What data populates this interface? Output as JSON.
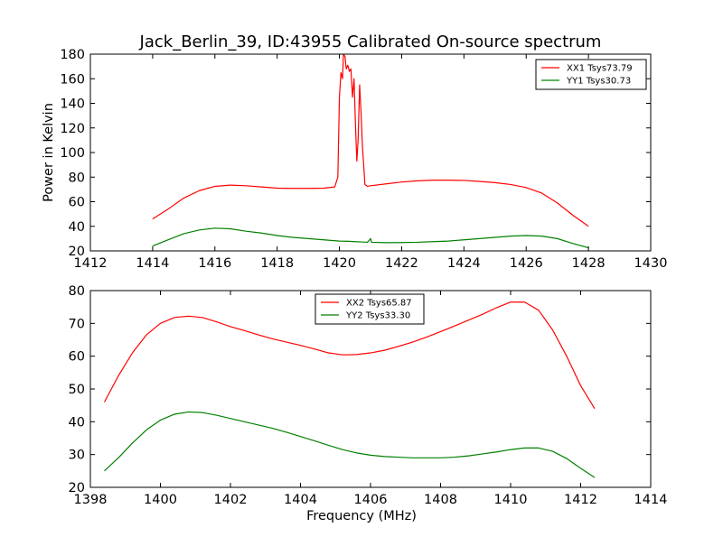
{
  "figure": {
    "title": "Jack_Berlin_39, ID:43955 Calibrated On-source spectrum",
    "colors": {
      "series1": "#ff0000",
      "series2": "#008000",
      "axes": "#000000",
      "background": "#ffffff"
    }
  },
  "chart_data": [
    {
      "type": "line",
      "title": "Jack_Berlin_39, ID:43955 Calibrated On-source spectrum",
      "xlabel": "",
      "ylabel": "Power in Kelvin",
      "xlim": [
        1412,
        1430
      ],
      "ylim": [
        20,
        180
      ],
      "xticks": [
        "1412",
        "1414",
        "1416",
        "1418",
        "1420",
        "1422",
        "1424",
        "1426",
        "1428",
        "1430"
      ],
      "yticks": [
        "20",
        "40",
        "60",
        "80",
        "100",
        "120",
        "140",
        "160",
        "180"
      ],
      "grid": false,
      "legend_position": "top-right",
      "series": [
        {
          "name": "XX1 Tsys73.79",
          "color": "#ff0000",
          "points": [
            [
              1414.0,
              46
            ],
            [
              1414.5,
              54
            ],
            [
              1415.0,
              63
            ],
            [
              1415.5,
              69
            ],
            [
              1416.0,
              72.5
            ],
            [
              1416.5,
              73.5
            ],
            [
              1417.0,
              73
            ],
            [
              1417.5,
              72
            ],
            [
              1418.0,
              71
            ],
            [
              1418.5,
              70.8
            ],
            [
              1419.0,
              70.8
            ],
            [
              1419.5,
              71
            ],
            [
              1419.85,
              72
            ],
            [
              1419.95,
              80
            ],
            [
              1420.0,
              145
            ],
            [
              1420.05,
              165
            ],
            [
              1420.1,
              160
            ],
            [
              1420.13,
              180
            ],
            [
              1420.18,
              178
            ],
            [
              1420.22,
              168
            ],
            [
              1420.27,
              171
            ],
            [
              1420.32,
              166
            ],
            [
              1420.37,
              168
            ],
            [
              1420.42,
              145
            ],
            [
              1420.47,
              160
            ],
            [
              1420.52,
              120
            ],
            [
              1420.56,
              93
            ],
            [
              1420.6,
              110
            ],
            [
              1420.65,
              155
            ],
            [
              1420.7,
              130
            ],
            [
              1420.74,
              105
            ],
            [
              1420.78,
              90
            ],
            [
              1420.82,
              74
            ],
            [
              1420.9,
              72.5
            ],
            [
              1421.0,
              73
            ],
            [
              1421.5,
              74.5
            ],
            [
              1422.0,
              76
            ],
            [
              1422.5,
              77
            ],
            [
              1423.0,
              77.5
            ],
            [
              1423.5,
              77.5
            ],
            [
              1424.0,
              77.3
            ],
            [
              1424.5,
              76.5
            ],
            [
              1425.0,
              75.5
            ],
            [
              1425.5,
              74
            ],
            [
              1426.0,
              71.5
            ],
            [
              1426.5,
              67
            ],
            [
              1427.0,
              59
            ],
            [
              1427.5,
              49
            ],
            [
              1428.0,
              40
            ]
          ]
        },
        {
          "name": "YY1 Tsys30.73",
          "color": "#008000",
          "points": [
            [
              1414.0,
              24
            ],
            [
              1414.5,
              29
            ],
            [
              1415.0,
              34
            ],
            [
              1415.5,
              37
            ],
            [
              1416.0,
              38.5
            ],
            [
              1416.5,
              38
            ],
            [
              1417.0,
              36
            ],
            [
              1417.5,
              34.5
            ],
            [
              1418.0,
              32.5
            ],
            [
              1418.5,
              31
            ],
            [
              1419.0,
              30
            ],
            [
              1419.5,
              29
            ],
            [
              1420.0,
              28
            ],
            [
              1420.3,
              27.8
            ],
            [
              1420.5,
              27.5
            ],
            [
              1420.7,
              27.3
            ],
            [
              1420.9,
              27
            ],
            [
              1420.97,
              29
            ],
            [
              1421.0,
              30
            ],
            [
              1421.03,
              27
            ],
            [
              1421.5,
              26.7
            ],
            [
              1422.0,
              26.8
            ],
            [
              1422.5,
              27
            ],
            [
              1423.0,
              27.5
            ],
            [
              1423.5,
              28
            ],
            [
              1424.0,
              29
            ],
            [
              1424.5,
              30
            ],
            [
              1425.0,
              31
            ],
            [
              1425.5,
              32
            ],
            [
              1426.0,
              32.5
            ],
            [
              1426.5,
              32
            ],
            [
              1427.0,
              30
            ],
            [
              1427.5,
              26
            ],
            [
              1428.0,
              22.5
            ]
          ]
        }
      ]
    },
    {
      "type": "line",
      "title": "",
      "xlabel": "Frequency (MHz)",
      "ylabel": "",
      "xlim": [
        1398,
        1414
      ],
      "ylim": [
        20,
        80
      ],
      "xticks": [
        "1398",
        "1400",
        "1402",
        "1404",
        "1406",
        "1408",
        "1410",
        "1412",
        "1414"
      ],
      "yticks": [
        "20",
        "30",
        "40",
        "50",
        "60",
        "70",
        "80"
      ],
      "grid": false,
      "legend_position": "top-center",
      "series": [
        {
          "name": "XX2 Tsys65.87",
          "color": "#ff0000",
          "points": [
            [
              1398.4,
              46
            ],
            [
              1398.8,
              54
            ],
            [
              1399.2,
              61
            ],
            [
              1399.6,
              66.5
            ],
            [
              1400.0,
              70
            ],
            [
              1400.4,
              71.8
            ],
            [
              1400.8,
              72.2
            ],
            [
              1401.2,
              71.8
            ],
            [
              1401.6,
              70.5
            ],
            [
              1402.0,
              69
            ],
            [
              1402.4,
              67.8
            ],
            [
              1402.8,
              66.5
            ],
            [
              1403.2,
              65.3
            ],
            [
              1403.6,
              64.3
            ],
            [
              1404.0,
              63.3
            ],
            [
              1404.4,
              62.2
            ],
            [
              1404.8,
              61
            ],
            [
              1405.2,
              60.4
            ],
            [
              1405.6,
              60.5
            ],
            [
              1406.0,
              61
            ],
            [
              1406.4,
              61.8
            ],
            [
              1406.8,
              63
            ],
            [
              1407.2,
              64.3
            ],
            [
              1407.6,
              65.8
            ],
            [
              1408.0,
              67.5
            ],
            [
              1408.4,
              69.2
            ],
            [
              1408.8,
              71
            ],
            [
              1409.2,
              72.8
            ],
            [
              1409.6,
              74.8
            ],
            [
              1410.0,
              76.5
            ],
            [
              1410.4,
              76.5
            ],
            [
              1410.8,
              74
            ],
            [
              1411.2,
              68
            ],
            [
              1411.6,
              60
            ],
            [
              1412.0,
              51
            ],
            [
              1412.4,
              44
            ]
          ]
        },
        {
          "name": "YY2 Tsys33.30",
          "color": "#008000",
          "points": [
            [
              1398.4,
              25
            ],
            [
              1398.8,
              29
            ],
            [
              1399.2,
              33.5
            ],
            [
              1399.6,
              37.5
            ],
            [
              1400.0,
              40.5
            ],
            [
              1400.4,
              42.3
            ],
            [
              1400.8,
              43
            ],
            [
              1401.2,
              42.8
            ],
            [
              1401.6,
              42
            ],
            [
              1402.0,
              41
            ],
            [
              1402.4,
              40
            ],
            [
              1402.8,
              39
            ],
            [
              1403.2,
              38
            ],
            [
              1403.6,
              36.8
            ],
            [
              1404.0,
              35.5
            ],
            [
              1404.4,
              34.2
            ],
            [
              1404.8,
              32.8
            ],
            [
              1405.2,
              31.5
            ],
            [
              1405.6,
              30.5
            ],
            [
              1406.0,
              29.8
            ],
            [
              1406.4,
              29.4
            ],
            [
              1406.8,
              29.2
            ],
            [
              1407.2,
              29
            ],
            [
              1407.6,
              29
            ],
            [
              1408.0,
              29
            ],
            [
              1408.4,
              29.2
            ],
            [
              1408.8,
              29.6
            ],
            [
              1409.2,
              30.2
            ],
            [
              1409.6,
              30.8
            ],
            [
              1410.0,
              31.5
            ],
            [
              1410.4,
              32
            ],
            [
              1410.8,
              32
            ],
            [
              1411.2,
              31
            ],
            [
              1411.6,
              28.8
            ],
            [
              1412.0,
              25.8
            ],
            [
              1412.4,
              23
            ]
          ]
        }
      ]
    }
  ]
}
